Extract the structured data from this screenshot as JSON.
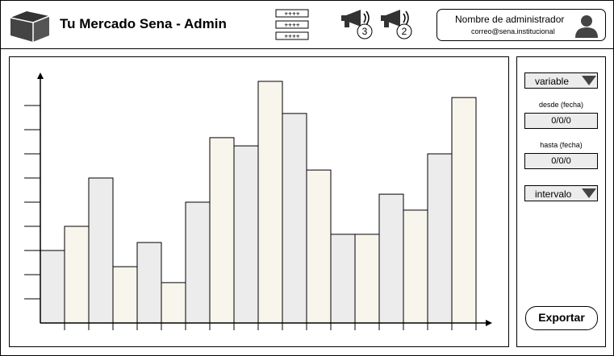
{
  "header": {
    "title": "Tu Mercado Sena - Admin",
    "notifications": [
      {
        "count": "3"
      },
      {
        "count": "2"
      }
    ],
    "admin": {
      "name": "Nombre de administrador",
      "email": "correo@sena.institucional"
    }
  },
  "filters": {
    "variable_label": "variable",
    "desde_label": "desde (fecha)",
    "desde_value": "0/0/0",
    "hasta_label": "hasta (fecha)",
    "hasta_value": "0/0/0",
    "intervalo_label": "intervalo",
    "export_label": "Exportar"
  },
  "colors": {
    "bar_gray": "#ececec",
    "bar_cream": "#f7f5ec",
    "stroke": "#000000"
  },
  "chart_data": {
    "type": "bar",
    "title": "",
    "xlabel": "",
    "ylabel": "",
    "ylim": [
      0,
      10
    ],
    "categories": [
      "",
      "",
      "",
      "",
      "",
      "",
      "",
      "",
      "",
      "",
      "",
      "",
      "",
      "",
      "",
      "",
      "",
      ""
    ],
    "values": [
      3,
      4,
      6,
      2.33,
      3.33,
      1.67,
      5,
      7.67,
      7.33,
      10,
      8.67,
      6.33,
      3.67,
      3.67,
      5.33,
      4.67,
      7,
      9.33
    ],
    "fills": [
      "gray",
      "cream",
      "gray",
      "cream",
      "gray",
      "cream",
      "gray",
      "cream",
      "gray",
      "cream",
      "gray",
      "cream",
      "gray",
      "cream",
      "gray",
      "cream",
      "gray",
      "cream"
    ],
    "grid": false
  }
}
